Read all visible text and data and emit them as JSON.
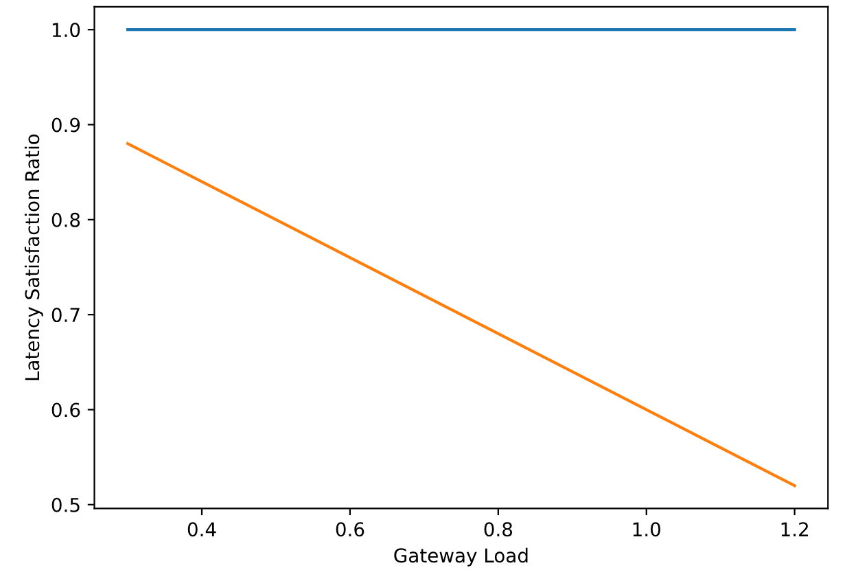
{
  "chart_data": {
    "type": "line",
    "xlabel": "Gateway Load",
    "ylabel": "Latency Satisfaction Ratio",
    "series": [
      {
        "color": "#1f77b4",
        "values": [
          1.0,
          1.0
        ]
      },
      {
        "color": "#ff7f0e",
        "values": [
          0.88,
          0.52
        ]
      }
    ],
    "x": [
      0.3,
      1.2
    ],
    "xlim": [
      0.255,
      1.245
    ],
    "ylim": [
      0.496,
      1.024
    ],
    "xticks": [
      {
        "value": 0.4,
        "label": "0.4"
      },
      {
        "value": 0.6,
        "label": "0.6"
      },
      {
        "value": 0.8,
        "label": "0.8"
      },
      {
        "value": 1.0,
        "label": "1.0"
      },
      {
        "value": 1.2,
        "label": "1.2"
      }
    ],
    "yticks": [
      {
        "value": 0.5,
        "label": "0.5"
      },
      {
        "value": 0.6,
        "label": "0.6"
      },
      {
        "value": 0.7,
        "label": "0.7"
      },
      {
        "value": 0.8,
        "label": "0.8"
      },
      {
        "value": 0.9,
        "label": "0.9"
      },
      {
        "value": 1.0,
        "label": "1.0"
      }
    ],
    "grid": false,
    "legend": false,
    "marker": "none",
    "line_style": "solid"
  }
}
